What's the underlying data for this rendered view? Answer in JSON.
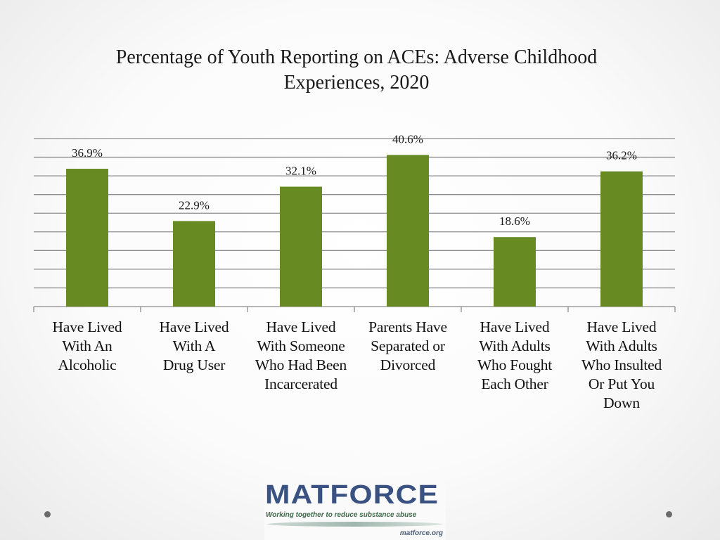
{
  "chart_data": {
    "type": "bar",
    "title": "Percentage of Youth Reporting on  ACEs:  Adverse Childhood Experiences, 2020",
    "title_lines": [
      "Percentage of Youth Reporting on  ACEs:  Adverse Childhood",
      "Experiences, 2020"
    ],
    "categories": [
      [
        "Have Lived",
        "With An",
        "Alcoholic"
      ],
      [
        "Have Lived",
        "With A",
        "Drug User"
      ],
      [
        "Have Lived",
        "With Someone",
        "Who Had Been",
        "Incarcerated"
      ],
      [
        "Parents Have",
        "Separated or",
        "Divorced"
      ],
      [
        "Have Lived",
        "With Adults",
        "Who Fought",
        "Each Other"
      ],
      [
        "Have Lived",
        "With Adults",
        "Who Insulted",
        "Or Put You",
        "Down"
      ]
    ],
    "values": [
      36.9,
      22.9,
      32.1,
      40.6,
      18.6,
      36.2
    ],
    "data_labels": [
      "36.9%",
      "22.9%",
      "32.1%",
      "40.6%",
      "18.6%",
      "36.2%"
    ],
    "ylim": [
      0,
      45
    ],
    "grid_step": 5,
    "grid": true,
    "xlabel": "",
    "ylabel": "",
    "bar_color": "#678a22"
  },
  "logo": {
    "name": "MATFORCE",
    "tagline": "Working together to reduce substance abuse",
    "url": "matforce.org"
  }
}
